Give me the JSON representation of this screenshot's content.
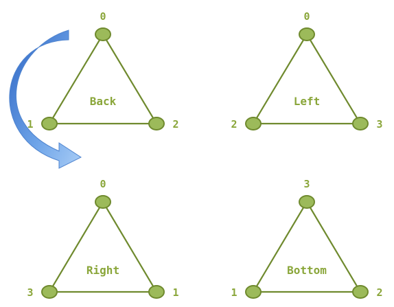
{
  "accent_color": "#9cba5a",
  "stroke_color": "#6f8a2e",
  "arrow_color": "#5b8fd6",
  "faces": [
    {
      "name": "Back",
      "labels": {
        "top": "0",
        "left": "1",
        "right": "2"
      }
    },
    {
      "name": "Left",
      "labels": {
        "top": "0",
        "left": "2",
        "right": "3"
      }
    },
    {
      "name": "Right",
      "labels": {
        "top": "0",
        "left": "3",
        "right": "1"
      }
    },
    {
      "name": "Bottom",
      "labels": {
        "top": "3",
        "left": "1",
        "right": "2"
      }
    }
  ],
  "arrow_icon": "curved-arrow-icon"
}
